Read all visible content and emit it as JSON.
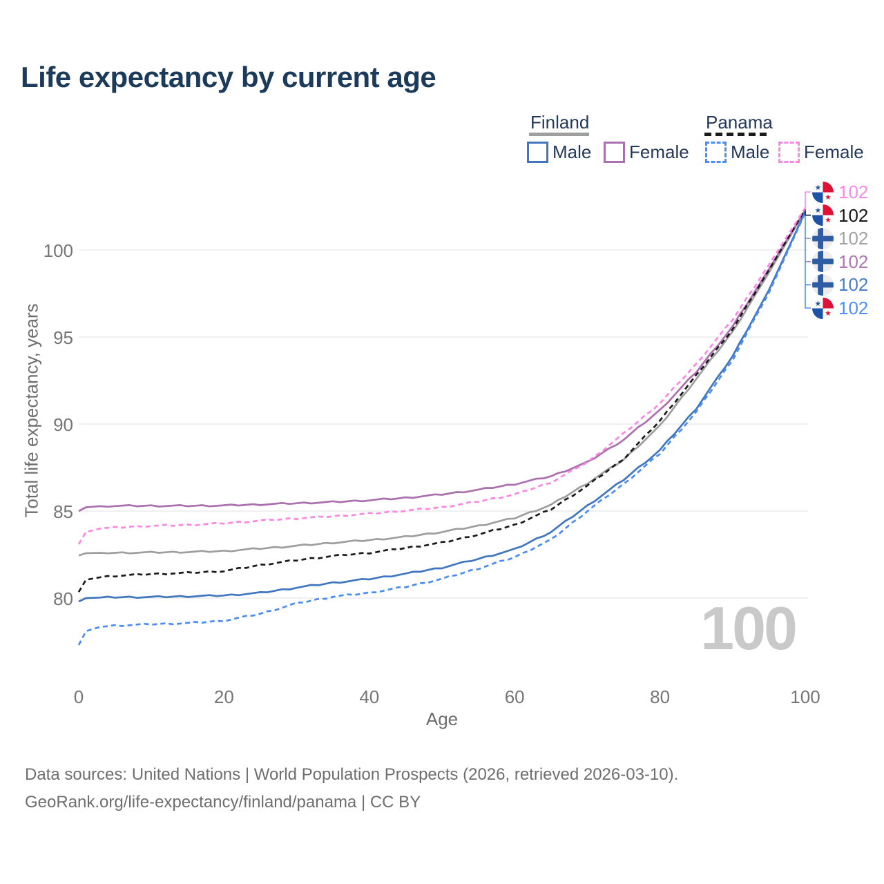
{
  "title": "Life expectancy by current age",
  "legend": {
    "finland_label": "Finland",
    "panama_label": "Panama",
    "finland_male_label": "Male",
    "finland_female_label": "Female",
    "panama_male_label": "Male",
    "panama_female_label": "Female"
  },
  "colors": {
    "title_text": "#1c3a5a",
    "legend_text": "#24385a",
    "axis_text": "#757575",
    "grid": "#ececec",
    "watermark": "#c9c9c9",
    "finland_male": "#3f76be",
    "finland_female": "#ab70ae",
    "finland_total": "#9e9e9e",
    "panama_male": "#4b8cf3",
    "panama_female": "#fb86e4",
    "panama_total": "#1a1a1a"
  },
  "age_counter": "100",
  "right_labels": [
    {
      "flag": "panama",
      "series": "Panama Female",
      "value": "102",
      "color": "#fd87e6"
    },
    {
      "flag": "panama",
      "series": "Panama",
      "value": "102",
      "color": "#161616"
    },
    {
      "flag": "finland",
      "series": "Finland",
      "value": "102",
      "color": "#a3a3a3"
    },
    {
      "flag": "finland",
      "series": "Finland Female",
      "value": "102",
      "color": "#b077b4"
    },
    {
      "flag": "finland",
      "series": "Finland Male",
      "value": "102",
      "color": "#4b7ec7"
    },
    {
      "flag": "panama",
      "series": "Panama Male",
      "value": "102",
      "color": "#4f8ef9"
    }
  ],
  "footer": {
    "line1": "Data sources: United Nations | World Population Prospects (2026, retrieved 2026-03-10).",
    "line2": "GeoRank.org/life-expectancy/finland/panama | CC BY"
  },
  "chart_data": {
    "type": "line",
    "title": "Life expectancy by current age",
    "xlabel": "Age",
    "ylabel": "Total life expectancy, years",
    "xlim": [
      0,
      100
    ],
    "ylim": [
      77,
      103
    ],
    "x_ticks": [
      0,
      20,
      40,
      60,
      80,
      100
    ],
    "y_ticks": [
      80,
      85,
      90,
      95,
      100
    ],
    "grid": true,
    "legend_position": "top-right",
    "x": [
      0,
      1,
      3,
      5,
      10,
      15,
      20,
      25,
      30,
      35,
      40,
      45,
      50,
      55,
      60,
      65,
      70,
      75,
      80,
      85,
      90,
      95,
      100
    ],
    "series": [
      {
        "name": "Finland",
        "group": "total",
        "style": "solid",
        "color": "#9e9e9e",
        "values": [
          82.45,
          82.58,
          82.6,
          82.6,
          82.62,
          82.65,
          82.7,
          82.85,
          83.0,
          83.18,
          83.33,
          83.52,
          83.8,
          84.15,
          84.6,
          85.35,
          86.6,
          87.95,
          89.9,
          92.6,
          95.3,
          98.7,
          102.28
        ],
        "end_label": "102"
      },
      {
        "name": "Finland Female",
        "group": "female",
        "style": "solid",
        "color": "#ab70ae",
        "values": [
          85.0,
          85.22,
          85.28,
          85.3,
          85.3,
          85.3,
          85.32,
          85.38,
          85.45,
          85.52,
          85.62,
          85.76,
          85.96,
          86.22,
          86.55,
          87.0,
          87.8,
          89.1,
          90.8,
          93.0,
          95.6,
          98.9,
          102.3
        ],
        "end_label": "102"
      },
      {
        "name": "Finland Male",
        "group": "male",
        "style": "solid",
        "color": "#3f76be",
        "values": [
          79.8,
          80.0,
          80.03,
          80.05,
          80.06,
          80.1,
          80.15,
          80.3,
          80.6,
          80.88,
          81.1,
          81.4,
          81.75,
          82.25,
          82.8,
          83.8,
          85.3,
          86.8,
          88.5,
          90.9,
          93.9,
          97.7,
          102.2
        ],
        "end_label": "102"
      },
      {
        "name": "Panama",
        "group": "total",
        "style": "dashed",
        "color": "#1a1a1a",
        "values": [
          80.35,
          81.05,
          81.2,
          81.28,
          81.38,
          81.45,
          81.55,
          81.9,
          82.18,
          82.42,
          82.6,
          82.88,
          83.18,
          83.65,
          84.2,
          85.1,
          86.45,
          88.0,
          90.2,
          92.8,
          95.45,
          98.85,
          102.34
        ],
        "end_label": "102"
      },
      {
        "name": "Panama Female",
        "group": "female",
        "style": "dashed",
        "color": "#fb86e4",
        "values": [
          83.1,
          83.8,
          84.0,
          84.05,
          84.15,
          84.2,
          84.3,
          84.45,
          84.58,
          84.7,
          84.85,
          85.02,
          85.22,
          85.55,
          85.95,
          86.65,
          87.8,
          89.45,
          91.2,
          93.45,
          96.0,
          99.15,
          102.42
        ],
        "end_label": "102"
      },
      {
        "name": "Panama Male",
        "group": "male",
        "style": "dashed",
        "color": "#4b8cf3",
        "values": [
          77.3,
          78.1,
          78.35,
          78.42,
          78.5,
          78.56,
          78.7,
          79.1,
          79.7,
          80.08,
          80.3,
          80.65,
          81.1,
          81.7,
          82.35,
          83.35,
          85.0,
          86.55,
          88.3,
          90.7,
          93.7,
          97.55,
          102.15
        ],
        "end_label": "102"
      }
    ]
  }
}
